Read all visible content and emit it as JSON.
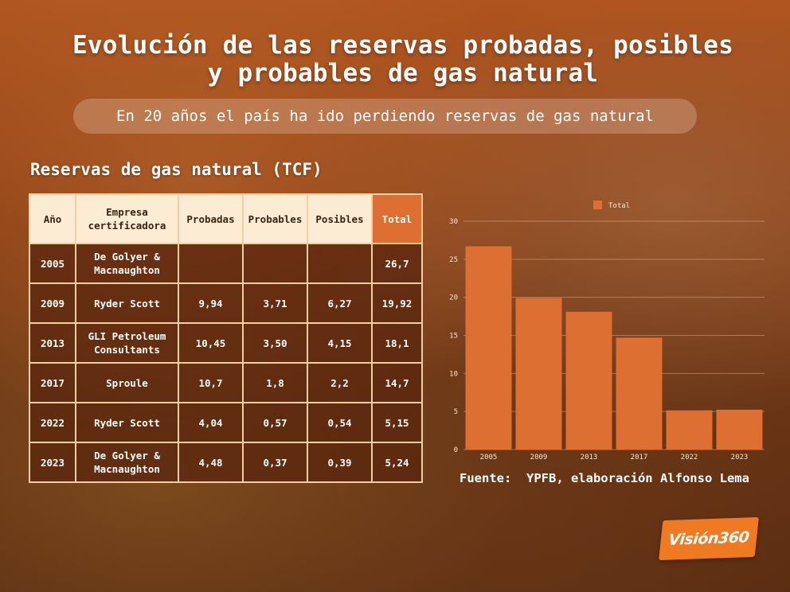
{
  "title_line1": "Evolución de las reservas probadas, posibles",
  "title_line2": "y probables de gas natural",
  "subtitle": "En 20 años el país ha ido perdiendo reservas de gas natural",
  "table_title": "Reservas de gas natural (TCF)",
  "table": {
    "headers": [
      "Año",
      "Empresa\ncertificadora",
      "Probadas",
      "Probables",
      "Posibles",
      "Total"
    ],
    "rows": [
      [
        "2005",
        "De Golyer &\nMacnaughton",
        "",
        "",
        "",
        "26,7"
      ],
      [
        "2009",
        "Ryder Scott",
        "9,94",
        "3,71",
        "6,27",
        "19,92"
      ],
      [
        "2013",
        "GLI Petroleum\nConsultants",
        "10,45",
        "3,50",
        "4,15",
        "18,1"
      ],
      [
        "2017",
        "Sproule",
        "10,7",
        "1,8",
        "2,2",
        "14,7"
      ],
      [
        "2022",
        "Ryder Scott",
        "4,04",
        "0,57",
        "0,54",
        "5,15"
      ],
      [
        "2023",
        "De Golyer &\nMacnaughton",
        "4,48",
        "0,37",
        "0,39",
        "5,24"
      ]
    ]
  },
  "chart_data": {
    "type": "bar",
    "categories": [
      "2005",
      "2009",
      "2013",
      "2017",
      "2022",
      "2023"
    ],
    "series": [
      {
        "name": "Total",
        "values": [
          26.7,
          19.92,
          18.1,
          14.7,
          5.15,
          5.24
        ]
      }
    ],
    "ylim": [
      0,
      30
    ],
    "yticks": [
      0,
      5,
      10,
      15,
      20,
      25,
      30
    ],
    "grid": true,
    "legend": "top-center",
    "bar_color": "#dd6f32"
  },
  "source": "Fuente:  YPFB, elaboración Alfonso Lema",
  "logo_text": "Visión360"
}
